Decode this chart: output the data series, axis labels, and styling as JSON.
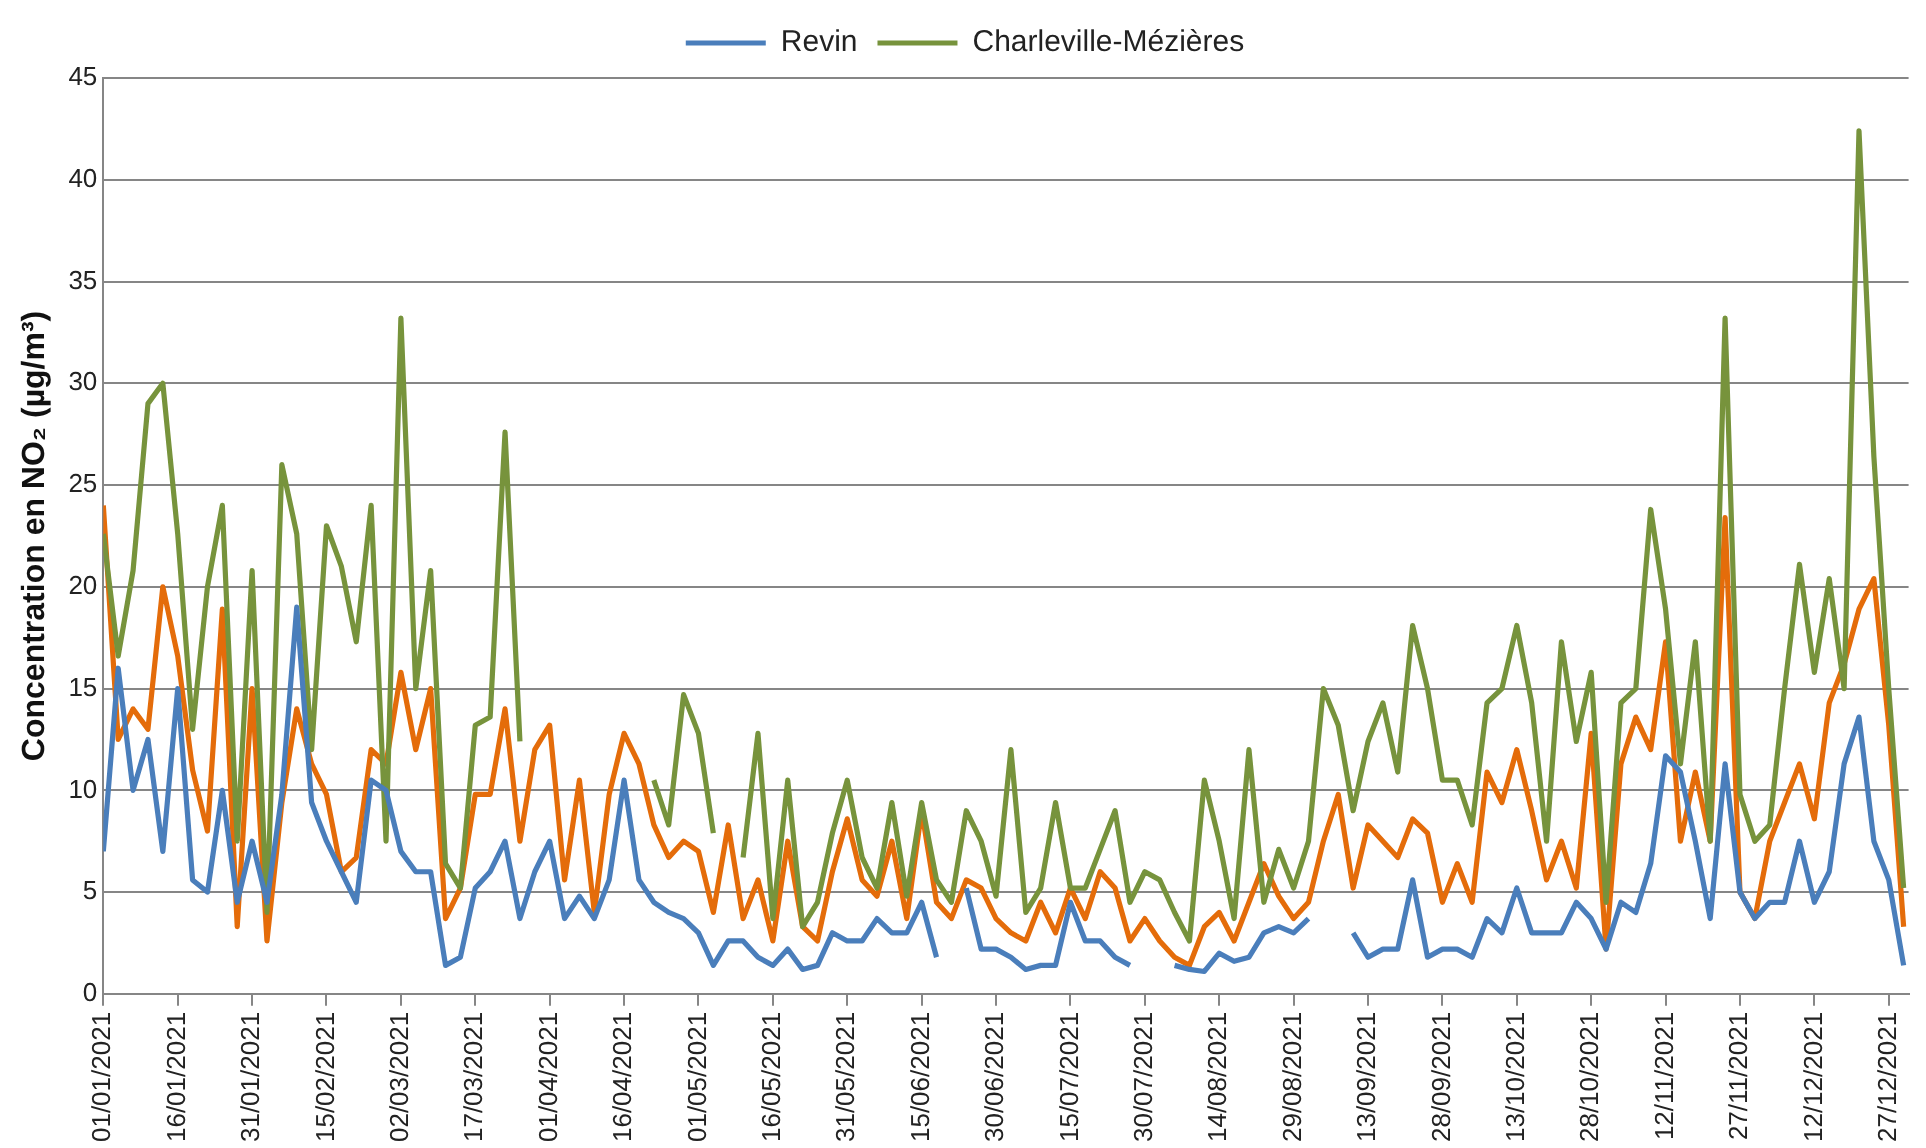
{
  "chart_data": {
    "type": "line",
    "ylabel": "Concentration en NO₂ (µg/m³)",
    "legend": "top",
    "grid": "y",
    "marker": "none",
    "line_style": "solid",
    "xlim": [
      "2021-01-01",
      "2021-12-31"
    ],
    "ylim": [
      0,
      45
    ],
    "yticks": [
      0,
      5,
      10,
      15,
      20,
      25,
      30,
      35,
      40,
      45
    ],
    "xticks": [
      {
        "value": "2021-01-01",
        "label": "01/01/2021"
      },
      {
        "value": "2021-01-16",
        "label": "16/01/2021"
      },
      {
        "value": "2021-01-31",
        "label": "31/01/2021"
      },
      {
        "value": "2021-02-15",
        "label": "15/02/2021"
      },
      {
        "value": "2021-03-02",
        "label": "02/03/2021"
      },
      {
        "value": "2021-03-17",
        "label": "17/03/2021"
      },
      {
        "value": "2021-04-01",
        "label": "01/04/2021"
      },
      {
        "value": "2021-04-16",
        "label": "16/04/2021"
      },
      {
        "value": "2021-05-01",
        "label": "01/05/2021"
      },
      {
        "value": "2021-05-16",
        "label": "16/05/2021"
      },
      {
        "value": "2021-05-31",
        "label": "31/05/2021"
      },
      {
        "value": "2021-06-15",
        "label": "15/06/2021"
      },
      {
        "value": "2021-06-30",
        "label": "30/06/2021"
      },
      {
        "value": "2021-07-15",
        "label": "15/07/2021"
      },
      {
        "value": "2021-07-30",
        "label": "30/07/2021"
      },
      {
        "value": "2021-08-14",
        "label": "14/08/2021"
      },
      {
        "value": "2021-08-29",
        "label": "29/08/2021"
      },
      {
        "value": "2021-09-13",
        "label": "13/09/2021"
      },
      {
        "value": "2021-09-28",
        "label": "28/09/2021"
      },
      {
        "value": "2021-10-13",
        "label": "13/10/2021"
      },
      {
        "value": "2021-10-28",
        "label": "28/10/2021"
      },
      {
        "value": "2021-11-12",
        "label": "12/11/2021"
      },
      {
        "value": "2021-11-27",
        "label": "27/11/2021"
      },
      {
        "value": "2021-12-12",
        "label": "12/12/2021"
      },
      {
        "value": "2021-12-27",
        "label": "27/12/2021"
      }
    ],
    "x": [
      "2021-01-01",
      "2021-01-04",
      "2021-01-07",
      "2021-01-10",
      "2021-01-13",
      "2021-01-16",
      "2021-01-19",
      "2021-01-22",
      "2021-01-25",
      "2021-01-28",
      "2021-01-31",
      "2021-02-03",
      "2021-02-06",
      "2021-02-09",
      "2021-02-12",
      "2021-02-15",
      "2021-02-18",
      "2021-02-21",
      "2021-02-24",
      "2021-02-27",
      "2021-03-02",
      "2021-03-05",
      "2021-03-08",
      "2021-03-11",
      "2021-03-14",
      "2021-03-17",
      "2021-03-20",
      "2021-03-23",
      "2021-03-26",
      "2021-03-29",
      "2021-04-01",
      "2021-04-04",
      "2021-04-07",
      "2021-04-10",
      "2021-04-13",
      "2021-04-16",
      "2021-04-19",
      "2021-04-22",
      "2021-04-25",
      "2021-04-28",
      "2021-05-01",
      "2021-05-04",
      "2021-05-07",
      "2021-05-10",
      "2021-05-13",
      "2021-05-16",
      "2021-05-19",
      "2021-05-22",
      "2021-05-25",
      "2021-05-28",
      "2021-05-31",
      "2021-06-03",
      "2021-06-06",
      "2021-06-09",
      "2021-06-12",
      "2021-06-15",
      "2021-06-18",
      "2021-06-21",
      "2021-06-24",
      "2021-06-27",
      "2021-06-30",
      "2021-07-03",
      "2021-07-06",
      "2021-07-09",
      "2021-07-12",
      "2021-07-15",
      "2021-07-18",
      "2021-07-21",
      "2021-07-24",
      "2021-07-27",
      "2021-07-30",
      "2021-08-02",
      "2021-08-05",
      "2021-08-08",
      "2021-08-11",
      "2021-08-14",
      "2021-08-17",
      "2021-08-20",
      "2021-08-23",
      "2021-08-26",
      "2021-08-29",
      "2021-09-01",
      "2021-09-04",
      "2021-09-07",
      "2021-09-10",
      "2021-09-13",
      "2021-09-16",
      "2021-09-19",
      "2021-09-22",
      "2021-09-25",
      "2021-09-28",
      "2021-10-01",
      "2021-10-04",
      "2021-10-07",
      "2021-10-10",
      "2021-10-13",
      "2021-10-16",
      "2021-10-19",
      "2021-10-22",
      "2021-10-25",
      "2021-10-28",
      "2021-10-31",
      "2021-11-03",
      "2021-11-06",
      "2021-11-09",
      "2021-11-12",
      "2021-11-15",
      "2021-11-18",
      "2021-11-21",
      "2021-11-24",
      "2021-11-27",
      "2021-11-30",
      "2021-12-03",
      "2021-12-06",
      "2021-12-09",
      "2021-12-12",
      "2021-12-15",
      "2021-12-18",
      "2021-12-21",
      "2021-12-24",
      "2021-12-27",
      "2021-12-30"
    ],
    "series": [
      {
        "name": "Revin",
        "color": "#4a7ebb",
        "values": [
          7,
          16,
          10,
          12.5,
          7,
          15,
          5.6,
          5,
          10,
          4.5,
          7.5,
          4.5,
          9.8,
          19,
          9.4,
          7.5,
          6,
          4.5,
          10.5,
          10,
          7,
          6,
          6,
          1.4,
          1.8,
          5.2,
          6,
          7.5,
          3.7,
          6,
          7.5,
          3.7,
          4.8,
          3.7,
          5.6,
          10.5,
          5.6,
          4.5,
          4,
          3.7,
          3,
          1.4,
          2.6,
          2.6,
          1.8,
          1.4,
          2.2,
          1.2,
          1.4,
          3,
          2.6,
          2.6,
          3.7,
          3,
          3,
          4.5,
          1.8,
          null,
          5.2,
          2.2,
          2.2,
          1.8,
          1.2,
          1.4,
          1.4,
          4.5,
          2.6,
          2.6,
          1.8,
          1.4,
          null,
          null,
          1.4,
          1.2,
          1.1,
          2,
          1.6,
          1.8,
          3,
          3.3,
          3,
          3.7,
          null,
          null,
          3,
          1.8,
          2.2,
          2.2,
          5.6,
          1.8,
          2.2,
          2.2,
          1.8,
          3.7,
          3,
          5.2,
          3,
          3,
          3,
          4.5,
          3.7,
          2.2,
          4.5,
          4,
          6.4,
          11.7,
          10.9,
          7.5,
          3.7,
          11.3,
          5,
          3.7,
          4.5,
          4.5,
          7.5,
          4.5,
          6,
          11.3,
          13.6,
          7.5,
          5.6,
          1.4
        ]
      },
      {
        "name": "Charleville-Mézières",
        "color": "#77933c",
        "values": [
          22.6,
          16.6,
          20.8,
          29,
          30,
          22.6,
          13,
          20,
          24,
          7.5,
          20.8,
          4,
          26,
          22.6,
          12,
          23,
          21,
          17.3,
          24,
          7.5,
          33.2,
          15,
          20.8,
          6.4,
          5.2,
          13.2,
          13.6,
          27.6,
          12.4,
          null,
          null,
          null,
          null,
          null,
          null,
          null,
          null,
          10.5,
          8.3,
          14.7,
          12.8,
          7.9,
          null,
          6.7,
          12.8,
          3.7,
          10.5,
          3.3,
          4.5,
          7.9,
          10.5,
          6.7,
          5.2,
          9.4,
          4.8,
          9.4,
          5.6,
          4.5,
          9,
          7.5,
          4.8,
          12,
          4,
          5.2,
          9.4,
          5.2,
          5.2,
          7.1,
          9,
          4.5,
          6,
          5.6,
          4,
          2.6,
          10.5,
          7.5,
          3.7,
          12,
          4.5,
          7.1,
          5.2,
          7.5,
          15,
          13.2,
          9,
          12.4,
          14.3,
          10.9,
          18.1,
          15,
          10.5,
          10.5,
          8.3,
          14.3,
          15,
          18.1,
          14.3,
          7.5,
          17.3,
          12.4,
          15.8,
          4.5,
          14.3,
          15,
          23.8,
          18.9,
          11.3,
          17.3,
          7.5,
          33.2,
          9.8,
          7.5,
          8.3,
          15,
          21.1,
          15.8,
          20.4,
          15,
          42.4,
          26.4,
          15,
          5.2
        ]
      },
      {
        "color": "#e46c0a",
        "values": [
          24,
          12.5,
          14,
          13,
          20,
          16.6,
          11,
          8,
          18.9,
          3.3,
          15,
          2.6,
          9.4,
          14,
          11.3,
          9.8,
          6,
          6.7,
          12,
          11.3,
          15.8,
          12,
          15,
          3.7,
          5.2,
          9.8,
          9.8,
          14,
          7.5,
          12,
          13.2,
          5.6,
          10.5,
          4,
          9.8,
          12.8,
          11.3,
          8.3,
          6.7,
          7.5,
          7,
          4,
          8.3,
          3.7,
          5.6,
          2.6,
          7.5,
          3.3,
          2.6,
          6,
          8.6,
          5.6,
          4.8,
          7.5,
          3.7,
          9,
          4.5,
          3.7,
          5.6,
          5.2,
          3.7,
          3,
          2.6,
          4.5,
          3,
          5.2,
          3.7,
          6,
          5.2,
          2.6,
          3.7,
          2.6,
          1.8,
          1.4,
          3.3,
          4,
          2.6,
          4.5,
          6.4,
          4.8,
          3.7,
          4.5,
          7.5,
          9.8,
          5.2,
          8.3,
          7.5,
          6.7,
          8.6,
          7.9,
          4.5,
          6.4,
          4.5,
          10.9,
          9.4,
          12,
          9,
          5.6,
          7.5,
          5.2,
          12.8,
          2.2,
          11.3,
          13.6,
          12,
          17.3,
          7.5,
          10.9,
          7.5,
          23.4,
          5,
          3.7,
          7.5,
          9.4,
          11.3,
          8.6,
          14.3,
          16.2,
          18.9,
          20.4,
          13.2,
          3.3
        ]
      }
    ]
  }
}
